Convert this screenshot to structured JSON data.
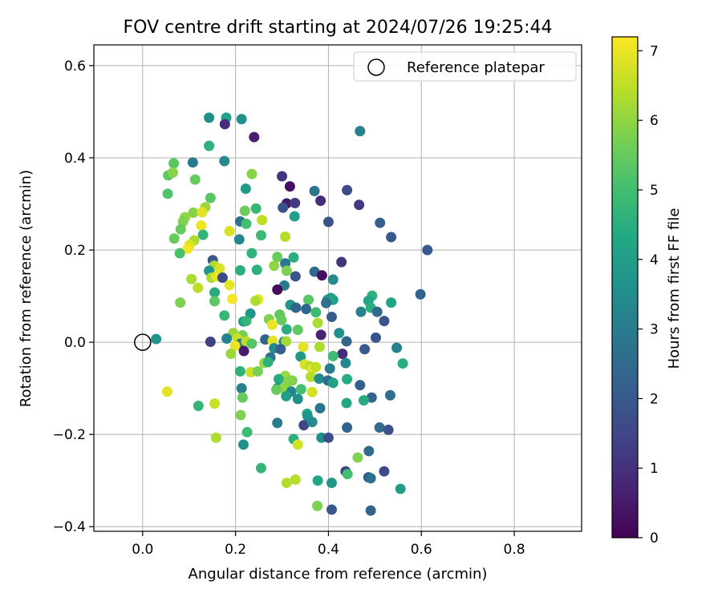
{
  "chart_data": {
    "type": "scatter",
    "title": "FOV centre drift starting at 2024/07/26 19:25:44",
    "xlabel": "Angular distance from reference (arcmin)",
    "ylabel": "Rotation from reference (arcmin)",
    "xlim": [
      -0.105,
      0.945
    ],
    "ylim": [
      -0.41,
      0.645
    ],
    "x_ticks": [
      0.0,
      0.2,
      0.4,
      0.6,
      0.8
    ],
    "x_tick_labels": [
      "0.0",
      "0.2",
      "0.4",
      "0.6",
      "0.8"
    ],
    "y_ticks": [
      -0.4,
      -0.2,
      0.0,
      0.2,
      0.4,
      0.6
    ],
    "y_tick_labels": [
      "−0.4",
      "−0.2",
      "0.0",
      "0.2",
      "0.4",
      "0.6"
    ],
    "grid": true,
    "legend": {
      "position": "top-right",
      "label": "Reference platepar",
      "marker": "open-circle"
    },
    "reference_point": {
      "x": 0.0,
      "y": 0.0
    },
    "colorbar": {
      "label": "Hours from first FF file",
      "range": [
        0,
        7.2
      ],
      "ticks": [
        0,
        1,
        2,
        3,
        4,
        5,
        6,
        7
      ],
      "tick_labels": [
        "0",
        "1",
        "2",
        "3",
        "4",
        "5",
        "6",
        "7"
      ],
      "colormap": "viridis"
    },
    "points": [
      {
        "x": 0.143,
        "y": 0.487,
        "h": 3.5
      },
      {
        "x": 0.18,
        "y": 0.487,
        "h": 4.1
      },
      {
        "x": 0.213,
        "y": 0.484,
        "h": 3.6
      },
      {
        "x": 0.177,
        "y": 0.473,
        "h": 0.9
      },
      {
        "x": 0.468,
        "y": 0.458,
        "h": 3.2
      },
      {
        "x": 0.24,
        "y": 0.445,
        "h": 0.6
      },
      {
        "x": 0.143,
        "y": 0.426,
        "h": 4.6
      },
      {
        "x": 0.176,
        "y": 0.393,
        "h": 3.4
      },
      {
        "x": 0.067,
        "y": 0.388,
        "h": 5.3
      },
      {
        "x": 0.108,
        "y": 0.39,
        "h": 2.9
      },
      {
        "x": 0.055,
        "y": 0.362,
        "h": 5.4
      },
      {
        "x": 0.065,
        "y": 0.368,
        "h": 5.9
      },
      {
        "x": 0.235,
        "y": 0.365,
        "h": 5.9
      },
      {
        "x": 0.3,
        "y": 0.36,
        "h": 1.1
      },
      {
        "x": 0.113,
        "y": 0.353,
        "h": 5.5
      },
      {
        "x": 0.317,
        "y": 0.338,
        "h": 0.3
      },
      {
        "x": 0.222,
        "y": 0.333,
        "h": 3.9
      },
      {
        "x": 0.37,
        "y": 0.328,
        "h": 2.8
      },
      {
        "x": 0.44,
        "y": 0.33,
        "h": 1.6
      },
      {
        "x": 0.054,
        "y": 0.322,
        "h": 5.2
      },
      {
        "x": 0.146,
        "y": 0.313,
        "h": 5.3
      },
      {
        "x": 0.31,
        "y": 0.301,
        "h": 0.5
      },
      {
        "x": 0.328,
        "y": 0.302,
        "h": 1.2
      },
      {
        "x": 0.383,
        "y": 0.307,
        "h": 0.9
      },
      {
        "x": 0.466,
        "y": 0.298,
        "h": 1.2
      },
      {
        "x": 0.302,
        "y": 0.292,
        "h": 1.8
      },
      {
        "x": 0.244,
        "y": 0.29,
        "h": 4.8
      },
      {
        "x": 0.22,
        "y": 0.285,
        "h": 5.6
      },
      {
        "x": 0.109,
        "y": 0.281,
        "h": 5.9
      },
      {
        "x": 0.135,
        "y": 0.293,
        "h": 6.1
      },
      {
        "x": 0.091,
        "y": 0.271,
        "h": 6.0
      },
      {
        "x": 0.087,
        "y": 0.262,
        "h": 5.8
      },
      {
        "x": 0.128,
        "y": 0.282,
        "h": 6.9
      },
      {
        "x": 0.327,
        "y": 0.273,
        "h": 4.0
      },
      {
        "x": 0.257,
        "y": 0.265,
        "h": 6.5
      },
      {
        "x": 0.21,
        "y": 0.262,
        "h": 2.8
      },
      {
        "x": 0.4,
        "y": 0.261,
        "h": 1.8
      },
      {
        "x": 0.511,
        "y": 0.259,
        "h": 2.2
      },
      {
        "x": 0.223,
        "y": 0.257,
        "h": 5.0
      },
      {
        "x": 0.126,
        "y": 0.253,
        "h": 7.0
      },
      {
        "x": 0.082,
        "y": 0.245,
        "h": 5.5
      },
      {
        "x": 0.187,
        "y": 0.241,
        "h": 6.8
      },
      {
        "x": 0.13,
        "y": 0.233,
        "h": 4.7
      },
      {
        "x": 0.255,
        "y": 0.232,
        "h": 4.9
      },
      {
        "x": 0.307,
        "y": 0.229,
        "h": 6.4
      },
      {
        "x": 0.535,
        "y": 0.228,
        "h": 2.0
      },
      {
        "x": 0.068,
        "y": 0.225,
        "h": 5.5
      },
      {
        "x": 0.208,
        "y": 0.223,
        "h": 3.3
      },
      {
        "x": 0.111,
        "y": 0.221,
        "h": 6.3
      },
      {
        "x": 0.101,
        "y": 0.211,
        "h": 6.8
      },
      {
        "x": 0.097,
        "y": 0.203,
        "h": 7.1
      },
      {
        "x": 0.613,
        "y": 0.2,
        "h": 2.0
      },
      {
        "x": 0.08,
        "y": 0.193,
        "h": 5.1
      },
      {
        "x": 0.235,
        "y": 0.193,
        "h": 4.6
      },
      {
        "x": 0.29,
        "y": 0.185,
        "h": 5.5
      },
      {
        "x": 0.325,
        "y": 0.184,
        "h": 4.5
      },
      {
        "x": 0.151,
        "y": 0.178,
        "h": 2.0
      },
      {
        "x": 0.428,
        "y": 0.174,
        "h": 1.1
      },
      {
        "x": 0.283,
        "y": 0.166,
        "h": 6.0
      },
      {
        "x": 0.307,
        "y": 0.171,
        "h": 2.8
      },
      {
        "x": 0.154,
        "y": 0.166,
        "h": 6.3
      },
      {
        "x": 0.166,
        "y": 0.16,
        "h": 6.8
      },
      {
        "x": 0.246,
        "y": 0.157,
        "h": 4.6
      },
      {
        "x": 0.21,
        "y": 0.156,
        "h": 4.5
      },
      {
        "x": 0.143,
        "y": 0.155,
        "h": 3.7
      },
      {
        "x": 0.31,
        "y": 0.155,
        "h": 5.8
      },
      {
        "x": 0.37,
        "y": 0.153,
        "h": 2.4
      },
      {
        "x": 0.329,
        "y": 0.143,
        "h": 1.9
      },
      {
        "x": 0.148,
        "y": 0.14,
        "h": 6.3
      },
      {
        "x": 0.159,
        "y": 0.143,
        "h": 6.9
      },
      {
        "x": 0.386,
        "y": 0.145,
        "h": 0.3
      },
      {
        "x": 0.105,
        "y": 0.137,
        "h": 6.3
      },
      {
        "x": 0.172,
        "y": 0.14,
        "h": 1.6
      },
      {
        "x": 0.41,
        "y": 0.136,
        "h": 3.5
      },
      {
        "x": 0.187,
        "y": 0.124,
        "h": 6.9
      },
      {
        "x": 0.305,
        "y": 0.123,
        "h": 3.0
      },
      {
        "x": 0.119,
        "y": 0.118,
        "h": 6.5
      },
      {
        "x": 0.29,
        "y": 0.114,
        "h": 0.2
      },
      {
        "x": 0.155,
        "y": 0.108,
        "h": 4.4
      },
      {
        "x": 0.494,
        "y": 0.101,
        "h": 4.6
      },
      {
        "x": 0.598,
        "y": 0.104,
        "h": 2.3
      },
      {
        "x": 0.405,
        "y": 0.096,
        "h": 4.0
      },
      {
        "x": 0.193,
        "y": 0.094,
        "h": 7.1
      },
      {
        "x": 0.249,
        "y": 0.093,
        "h": 7.0
      },
      {
        "x": 0.243,
        "y": 0.09,
        "h": 6.3
      },
      {
        "x": 0.357,
        "y": 0.092,
        "h": 5.3
      },
      {
        "x": 0.398,
        "y": 0.092,
        "h": 3.7
      },
      {
        "x": 0.41,
        "y": 0.092,
        "h": 4.1
      },
      {
        "x": 0.155,
        "y": 0.089,
        "h": 5.4
      },
      {
        "x": 0.486,
        "y": 0.09,
        "h": 4.3
      },
      {
        "x": 0.535,
        "y": 0.086,
        "h": 4.2
      },
      {
        "x": 0.081,
        "y": 0.086,
        "h": 5.8
      },
      {
        "x": 0.395,
        "y": 0.085,
        "h": 2.6
      },
      {
        "x": 0.318,
        "y": 0.081,
        "h": 3.7
      },
      {
        "x": 0.33,
        "y": 0.075,
        "h": 2.3
      },
      {
        "x": 0.352,
        "y": 0.072,
        "h": 2.4
      },
      {
        "x": 0.491,
        "y": 0.075,
        "h": 4.5
      },
      {
        "x": 0.373,
        "y": 0.065,
        "h": 4.9
      },
      {
        "x": 0.47,
        "y": 0.066,
        "h": 3.1
      },
      {
        "x": 0.505,
        "y": 0.066,
        "h": 2.5
      },
      {
        "x": 0.232,
        "y": 0.062,
        "h": 3.8
      },
      {
        "x": 0.176,
        "y": 0.058,
        "h": 4.8
      },
      {
        "x": 0.295,
        "y": 0.06,
        "h": 5.4
      },
      {
        "x": 0.52,
        "y": 0.046,
        "h": 1.9
      },
      {
        "x": 0.217,
        "y": 0.045,
        "h": 3.9
      },
      {
        "x": 0.272,
        "y": 0.05,
        "h": 5.8
      },
      {
        "x": 0.299,
        "y": 0.048,
        "h": 5.5
      },
      {
        "x": 0.377,
        "y": 0.042,
        "h": 6.3
      },
      {
        "x": 0.223,
        "y": 0.046,
        "h": 4.7
      },
      {
        "x": 0.407,
        "y": 0.055,
        "h": 2.1
      },
      {
        "x": 0.279,
        "y": 0.038,
        "h": 7.0
      },
      {
        "x": 0.31,
        "y": 0.028,
        "h": 4.5
      },
      {
        "x": 0.334,
        "y": 0.027,
        "h": 5.4
      },
      {
        "x": 0.195,
        "y": 0.02,
        "h": 6.1
      },
      {
        "x": 0.215,
        "y": 0.015,
        "h": 5.7
      },
      {
        "x": 0.384,
        "y": 0.016,
        "h": 0.7
      },
      {
        "x": 0.423,
        "y": 0.02,
        "h": 3.6
      },
      {
        "x": 0.204,
        "y": 0.008,
        "h": 6.6
      },
      {
        "x": 0.502,
        "y": 0.01,
        "h": 1.9
      },
      {
        "x": 0.181,
        "y": 0.008,
        "h": 3.2
      },
      {
        "x": 0.264,
        "y": 0.006,
        "h": 2.3
      },
      {
        "x": 0.029,
        "y": 0.007,
        "h": 3.7
      },
      {
        "x": 0.146,
        "y": 0.001,
        "h": 1.4
      },
      {
        "x": 0.211,
        "y": -0.003,
        "h": 2.9
      },
      {
        "x": 0.223,
        "y": 0.002,
        "h": 6.5
      },
      {
        "x": 0.235,
        "y": -0.003,
        "h": 5.3
      },
      {
        "x": 0.28,
        "y": 0.003,
        "h": 6.9
      },
      {
        "x": 0.304,
        "y": 0.001,
        "h": 3.4
      },
      {
        "x": 0.309,
        "y": 0.002,
        "h": 6.2
      },
      {
        "x": 0.199,
        "y": -0.008,
        "h": 7.0
      },
      {
        "x": 0.283,
        "y": -0.013,
        "h": 3.4
      },
      {
        "x": 0.297,
        "y": -0.015,
        "h": 2.1
      },
      {
        "x": 0.346,
        "y": -0.01,
        "h": 6.9
      },
      {
        "x": 0.381,
        "y": -0.01,
        "h": 6.3
      },
      {
        "x": 0.439,
        "y": 0.002,
        "h": 2.4
      },
      {
        "x": 0.478,
        "y": -0.015,
        "h": 2.0
      },
      {
        "x": 0.547,
        "y": -0.012,
        "h": 3.1
      },
      {
        "x": 0.218,
        "y": -0.019,
        "h": 0.5
      },
      {
        "x": 0.19,
        "y": -0.025,
        "h": 6.1
      },
      {
        "x": 0.43,
        "y": -0.025,
        "h": 0.9
      },
      {
        "x": 0.34,
        "y": -0.031,
        "h": 3.8
      },
      {
        "x": 0.41,
        "y": -0.03,
        "h": 4.9
      },
      {
        "x": 0.275,
        "y": -0.033,
        "h": 2.7
      },
      {
        "x": 0.56,
        "y": -0.046,
        "h": 4.5
      },
      {
        "x": 0.437,
        "y": -0.045,
        "h": 3.3
      },
      {
        "x": 0.262,
        "y": -0.045,
        "h": 6.1
      },
      {
        "x": 0.27,
        "y": -0.043,
        "h": 4.6
      },
      {
        "x": 0.349,
        "y": -0.048,
        "h": 6.8
      },
      {
        "x": 0.36,
        "y": -0.052,
        "h": 6.4
      },
      {
        "x": 0.365,
        "y": -0.058,
        "h": 6.9
      },
      {
        "x": 0.373,
        "y": -0.054,
        "h": 6.5
      },
      {
        "x": 0.403,
        "y": -0.057,
        "h": 3.0
      },
      {
        "x": 0.21,
        "y": -0.063,
        "h": 4.6
      },
      {
        "x": 0.233,
        "y": -0.065,
        "h": 6.6
      },
      {
        "x": 0.248,
        "y": -0.063,
        "h": 5.7
      },
      {
        "x": 0.307,
        "y": -0.073,
        "h": 6.1
      },
      {
        "x": 0.362,
        "y": -0.075,
        "h": 6.4
      },
      {
        "x": 0.293,
        "y": -0.08,
        "h": 4.4
      },
      {
        "x": 0.322,
        "y": -0.083,
        "h": 5.8
      },
      {
        "x": 0.313,
        "y": -0.086,
        "h": 5.9
      },
      {
        "x": 0.38,
        "y": -0.079,
        "h": 3.5
      },
      {
        "x": 0.44,
        "y": -0.08,
        "h": 4.4
      },
      {
        "x": 0.399,
        "y": -0.083,
        "h": 2.6
      },
      {
        "x": 0.41,
        "y": -0.088,
        "h": 4.1
      },
      {
        "x": 0.468,
        "y": -0.093,
        "h": 2.2
      },
      {
        "x": 0.213,
        "y": -0.1,
        "h": 3.1
      },
      {
        "x": 0.29,
        "y": -0.1,
        "h": 3.6
      },
      {
        "x": 0.303,
        "y": -0.1,
        "h": 6.0
      },
      {
        "x": 0.288,
        "y": -0.103,
        "h": 5.5
      },
      {
        "x": 0.32,
        "y": -0.107,
        "h": 3.3
      },
      {
        "x": 0.341,
        "y": -0.102,
        "h": 5.0
      },
      {
        "x": 0.365,
        "y": -0.108,
        "h": 6.7
      },
      {
        "x": 0.053,
        "y": -0.107,
        "h": 6.9
      },
      {
        "x": 0.309,
        "y": -0.117,
        "h": 4.0
      },
      {
        "x": 0.334,
        "y": -0.123,
        "h": 3.5
      },
      {
        "x": 0.493,
        "y": -0.12,
        "h": 2.3
      },
      {
        "x": 0.533,
        "y": -0.115,
        "h": 2.6
      },
      {
        "x": 0.215,
        "y": -0.12,
        "h": 5.5
      },
      {
        "x": 0.476,
        "y": -0.126,
        "h": 4.4
      },
      {
        "x": 0.439,
        "y": -0.132,
        "h": 4.3
      },
      {
        "x": 0.155,
        "y": -0.133,
        "h": 6.6
      },
      {
        "x": 0.12,
        "y": -0.138,
        "h": 4.7
      },
      {
        "x": 0.382,
        "y": -0.143,
        "h": 2.8
      },
      {
        "x": 0.354,
        "y": -0.155,
        "h": 4.4
      },
      {
        "x": 0.355,
        "y": -0.16,
        "h": 3.7
      },
      {
        "x": 0.211,
        "y": -0.158,
        "h": 5.8
      },
      {
        "x": 0.29,
        "y": -0.175,
        "h": 3.0
      },
      {
        "x": 0.347,
        "y": -0.18,
        "h": 1.5
      },
      {
        "x": 0.365,
        "y": -0.173,
        "h": 3.4
      },
      {
        "x": 0.51,
        "y": -0.185,
        "h": 2.5
      },
      {
        "x": 0.529,
        "y": -0.19,
        "h": 1.8
      },
      {
        "x": 0.44,
        "y": -0.185,
        "h": 2.3
      },
      {
        "x": 0.225,
        "y": -0.195,
        "h": 4.9
      },
      {
        "x": 0.158,
        "y": -0.207,
        "h": 6.3
      },
      {
        "x": 0.325,
        "y": -0.21,
        "h": 4.5
      },
      {
        "x": 0.385,
        "y": -0.207,
        "h": 3.5
      },
      {
        "x": 0.4,
        "y": -0.207,
        "h": 1.7
      },
      {
        "x": 0.334,
        "y": -0.222,
        "h": 6.7
      },
      {
        "x": 0.217,
        "y": -0.222,
        "h": 3.6
      },
      {
        "x": 0.487,
        "y": -0.236,
        "h": 2.5
      },
      {
        "x": 0.463,
        "y": -0.25,
        "h": 5.8
      },
      {
        "x": 0.255,
        "y": -0.273,
        "h": 4.7
      },
      {
        "x": 0.437,
        "y": -0.28,
        "h": 1.4
      },
      {
        "x": 0.52,
        "y": -0.28,
        "h": 1.6
      },
      {
        "x": 0.441,
        "y": -0.286,
        "h": 5.0
      },
      {
        "x": 0.486,
        "y": -0.293,
        "h": 2.1
      },
      {
        "x": 0.491,
        "y": -0.295,
        "h": 2.6
      },
      {
        "x": 0.329,
        "y": -0.298,
        "h": 6.4
      },
      {
        "x": 0.377,
        "y": -0.3,
        "h": 4.3
      },
      {
        "x": 0.31,
        "y": -0.305,
        "h": 6.4
      },
      {
        "x": 0.407,
        "y": -0.305,
        "h": 3.8
      },
      {
        "x": 0.555,
        "y": -0.318,
        "h": 4.0
      },
      {
        "x": 0.376,
        "y": -0.355,
        "h": 5.8
      },
      {
        "x": 0.407,
        "y": -0.363,
        "h": 2.0
      },
      {
        "x": 0.491,
        "y": -0.365,
        "h": 2.3
      }
    ]
  }
}
